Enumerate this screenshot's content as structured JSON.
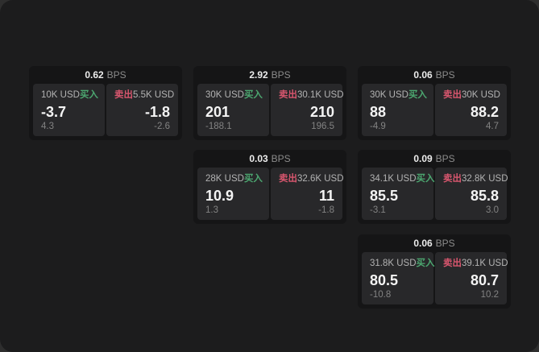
{
  "unit_label": "BPS",
  "labels": {
    "buy": "买入",
    "sell": "卖出"
  },
  "colors": {
    "buy": "#4ca770",
    "sell": "#d8566e",
    "window_background": "#1c1c1d",
    "card_background": "#151516",
    "panel_background": "#28282a"
  },
  "cards": [
    {
      "bps": "0.62",
      "buy": {
        "size": "10K USD",
        "value": "-3.7",
        "delta": "4.3"
      },
      "sell": {
        "size": "5.5K USD",
        "value": "-1.8",
        "delta": "-2.6"
      }
    },
    {
      "bps": "2.92",
      "buy": {
        "size": "30K USD",
        "value": "201",
        "delta": "-188.1"
      },
      "sell": {
        "size": "30.1K USD",
        "value": "210",
        "delta": "196.5"
      }
    },
    {
      "bps": "0.06",
      "buy": {
        "size": "30K USD",
        "value": "88",
        "delta": "-4.9"
      },
      "sell": {
        "size": "30K USD",
        "value": "88.2",
        "delta": "4.7"
      }
    },
    {
      "bps": "0.03",
      "buy": {
        "size": "28K USD",
        "value": "10.9",
        "delta": "1.3"
      },
      "sell": {
        "size": "32.6K USD",
        "value": "11",
        "delta": "-1.8"
      }
    },
    {
      "bps": "0.09",
      "buy": {
        "size": "34.1K USD",
        "value": "85.5",
        "delta": "-3.1"
      },
      "sell": {
        "size": "32.8K USD",
        "value": "85.8",
        "delta": "3.0"
      }
    },
    {
      "bps": "0.06",
      "buy": {
        "size": "31.8K USD",
        "value": "80.5",
        "delta": "-10.8"
      },
      "sell": {
        "size": "39.1K USD",
        "value": "80.7",
        "delta": "10.2"
      }
    }
  ]
}
